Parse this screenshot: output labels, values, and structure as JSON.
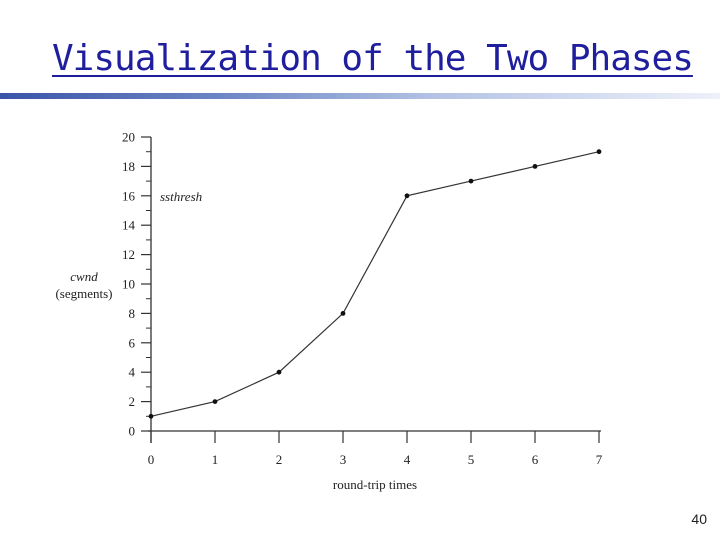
{
  "slide": {
    "title": "Visualization of the Two Phases",
    "page_number": "40"
  },
  "chart_data": {
    "type": "line",
    "x": [
      0,
      1,
      2,
      3,
      4,
      5,
      6,
      7
    ],
    "series": [
      {
        "values": [
          1,
          2,
          4,
          8,
          16,
          17,
          18,
          19
        ]
      }
    ],
    "xlabel": "round-trip times",
    "ylabel": [
      "cwnd",
      "(segments)"
    ],
    "xticks": [
      "0",
      "1",
      "2",
      "3",
      "4",
      "5",
      "6",
      "7"
    ],
    "yticks": [
      "0",
      "2",
      "4",
      "6",
      "8",
      "10",
      "12",
      "14",
      "16",
      "18",
      "20"
    ],
    "xlim": [
      0,
      7
    ],
    "ylim": [
      0,
      20
    ],
    "annotations": [
      {
        "text": "ssthresh",
        "y": 16
      }
    ],
    "grid": false,
    "colors": {
      "line": "#333333",
      "marker": "#111111",
      "axis": "#333333"
    }
  }
}
